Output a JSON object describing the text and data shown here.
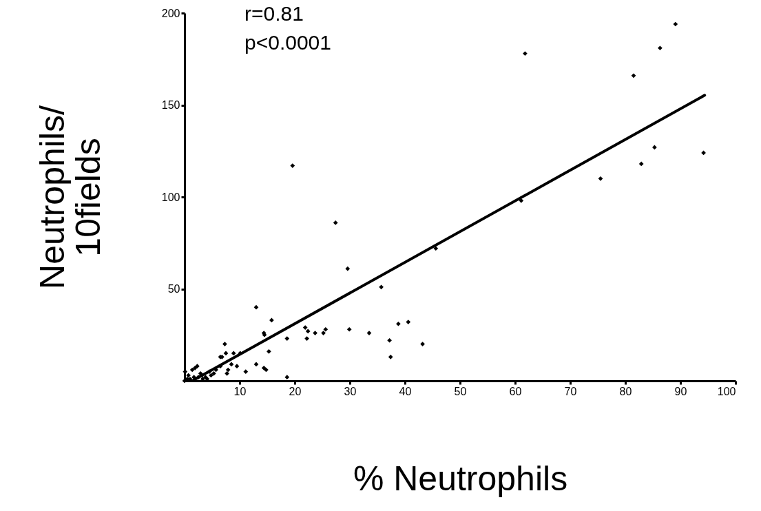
{
  "chart_data": {
    "type": "scatter",
    "xlabel": "% Neutrophils",
    "ylabel": "Neutrophils/\n10fields",
    "annotations": [
      "r=0.81",
      "p<0.0001"
    ],
    "xlim": [
      0,
      100
    ],
    "ylim": [
      0,
      200
    ],
    "xticks": [
      10,
      20,
      30,
      40,
      50,
      60,
      70,
      80,
      90,
      100
    ],
    "yticks": [
      50,
      100,
      150,
      200
    ],
    "grid": false,
    "series": [
      {
        "color": "#000000",
        "marker": "diamond",
        "x": [
          19.6,
          27.4,
          29.6,
          13.0,
          15.8,
          14.4,
          14.5,
          18.6,
          21.9,
          22.4,
          22.2,
          23.7,
          25.2,
          25.6,
          29.9,
          33.5,
          7.3,
          7.5,
          6.5,
          6.8,
          8.9,
          10.1,
          8.5,
          9.5,
          7.9,
          7.7,
          13.0,
          14.4,
          14.8,
          15.3,
          11.1,
          18.6,
          2.3,
          1.9,
          1.4,
          2.9,
          3.1,
          2.5,
          1.7,
          1.0,
          0.5,
          0.0,
          3.8,
          4.5,
          4.8,
          5.3,
          5.7,
          4.1,
          0.1,
          0.7,
          3.3,
          6.5,
          35.7,
          45.6,
          37.2,
          37.4,
          38.8,
          40.6,
          43.2,
          61.8,
          89.1,
          86.3,
          81.5,
          61.1,
          75.5,
          82.9,
          85.3,
          94.2
        ],
        "values": [
          117,
          86,
          61,
          40,
          33,
          26,
          25,
          23,
          29,
          27,
          23,
          26,
          26,
          28,
          28,
          26,
          20,
          15,
          13,
          13,
          15,
          15,
          9,
          8,
          6,
          4,
          9,
          7,
          6,
          16,
          5,
          2,
          8,
          7,
          6,
          4,
          3,
          2,
          2,
          1,
          1,
          0,
          2,
          5,
          3,
          4,
          6,
          1,
          5,
          3,
          1,
          8,
          51,
          72,
          22,
          13,
          31,
          32,
          20,
          178,
          194,
          181,
          166,
          98,
          110,
          118,
          127,
          124
        ]
      },
      {
        "type": "line",
        "color": "#000000",
        "line_style": "solid",
        "marker": "none",
        "x": [
          1.4,
          94.4
        ],
        "values": [
          0,
          155.3
        ]
      }
    ]
  }
}
